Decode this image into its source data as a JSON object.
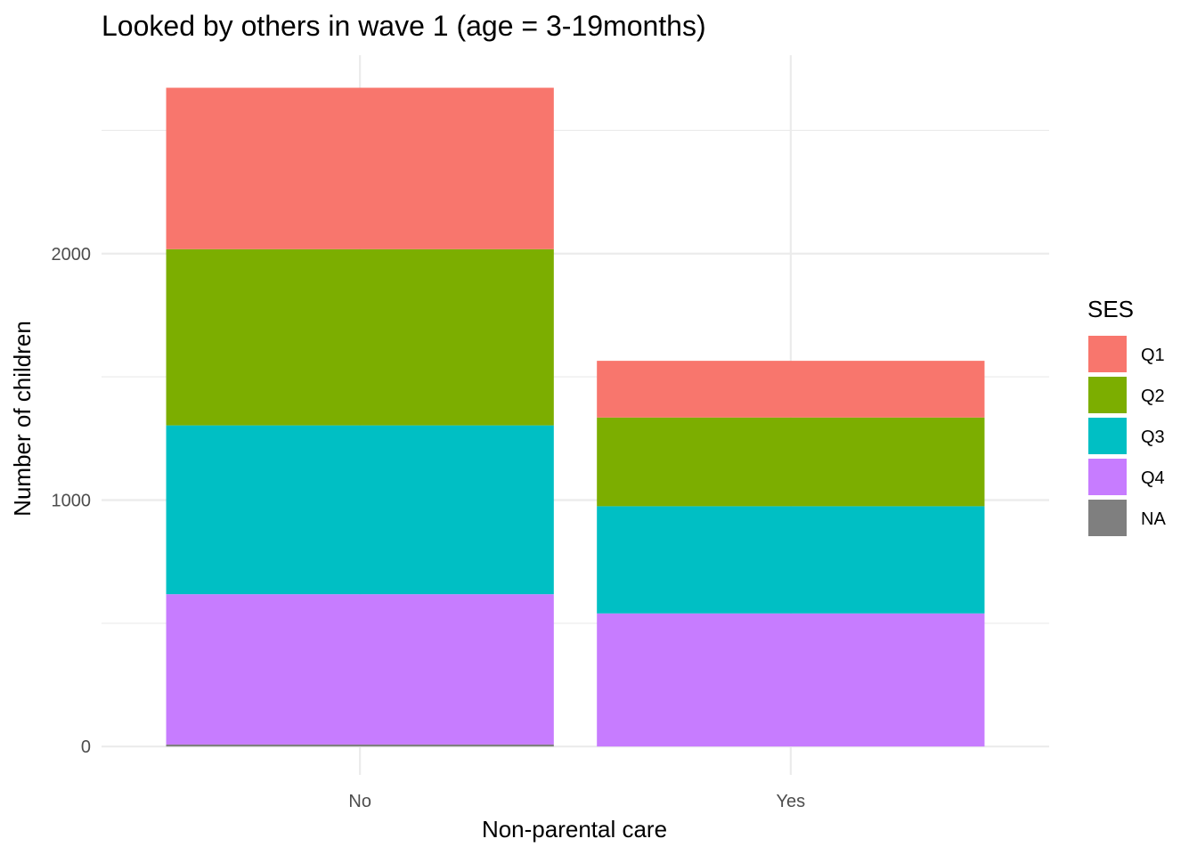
{
  "chart_data": {
    "type": "bar",
    "stacked": true,
    "title": "Looked by others in wave 1 (age = 3-19months)",
    "xlabel": "Non-parental care",
    "ylabel": "Number of children",
    "categories": [
      "No",
      "Yes"
    ],
    "series": [
      {
        "name": "Q1",
        "color": "#F8766D",
        "values": [
          655,
          230
        ]
      },
      {
        "name": "Q2",
        "color": "#7CAE00",
        "values": [
          715,
          360
        ]
      },
      {
        "name": "Q3",
        "color": "#00BFC4",
        "values": [
          685,
          435
        ]
      },
      {
        "name": "Q4",
        "color": "#C77CFF",
        "values": [
          610,
          540
        ]
      },
      {
        "name": "NA",
        "color": "#7F7F7F",
        "values": [
          8,
          0
        ]
      }
    ],
    "stack_order_bottom_to_top": [
      "NA",
      "Q4",
      "Q3",
      "Q2",
      "Q1"
    ],
    "yticks": [
      0,
      1000,
      2000
    ],
    "ylim": [
      -115,
      2805
    ],
    "grid": true,
    "legend": {
      "title": "SES",
      "position": "right",
      "entries": [
        "Q1",
        "Q2",
        "Q3",
        "Q4",
        "NA"
      ]
    }
  }
}
